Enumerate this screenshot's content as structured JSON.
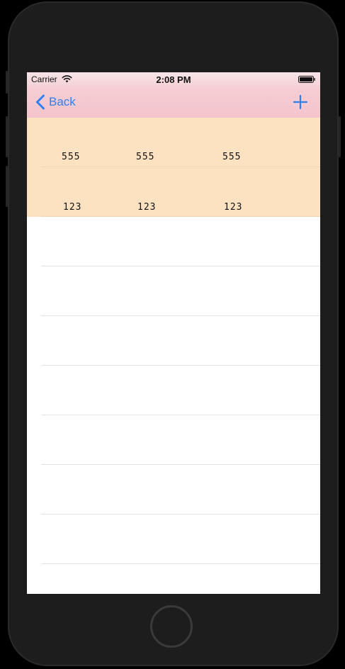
{
  "status_bar": {
    "carrier": "Carrier",
    "time": "2:08 PM"
  },
  "nav": {
    "back_label": "Back",
    "add_icon": "plus-icon",
    "back_icon": "chevron-left-icon"
  },
  "colors": {
    "accent": "#2f80f0",
    "nav_background": "#f4c4cc",
    "row_highlight": "#fde2c2"
  },
  "rows": [
    {
      "cells": [
        "555",
        "555",
        "555"
      ]
    },
    {
      "cells": [
        "123",
        "123",
        "123"
      ]
    },
    {
      "cells": []
    },
    {
      "cells": []
    },
    {
      "cells": []
    },
    {
      "cells": []
    },
    {
      "cells": []
    },
    {
      "cells": []
    },
    {
      "cells": []
    }
  ]
}
